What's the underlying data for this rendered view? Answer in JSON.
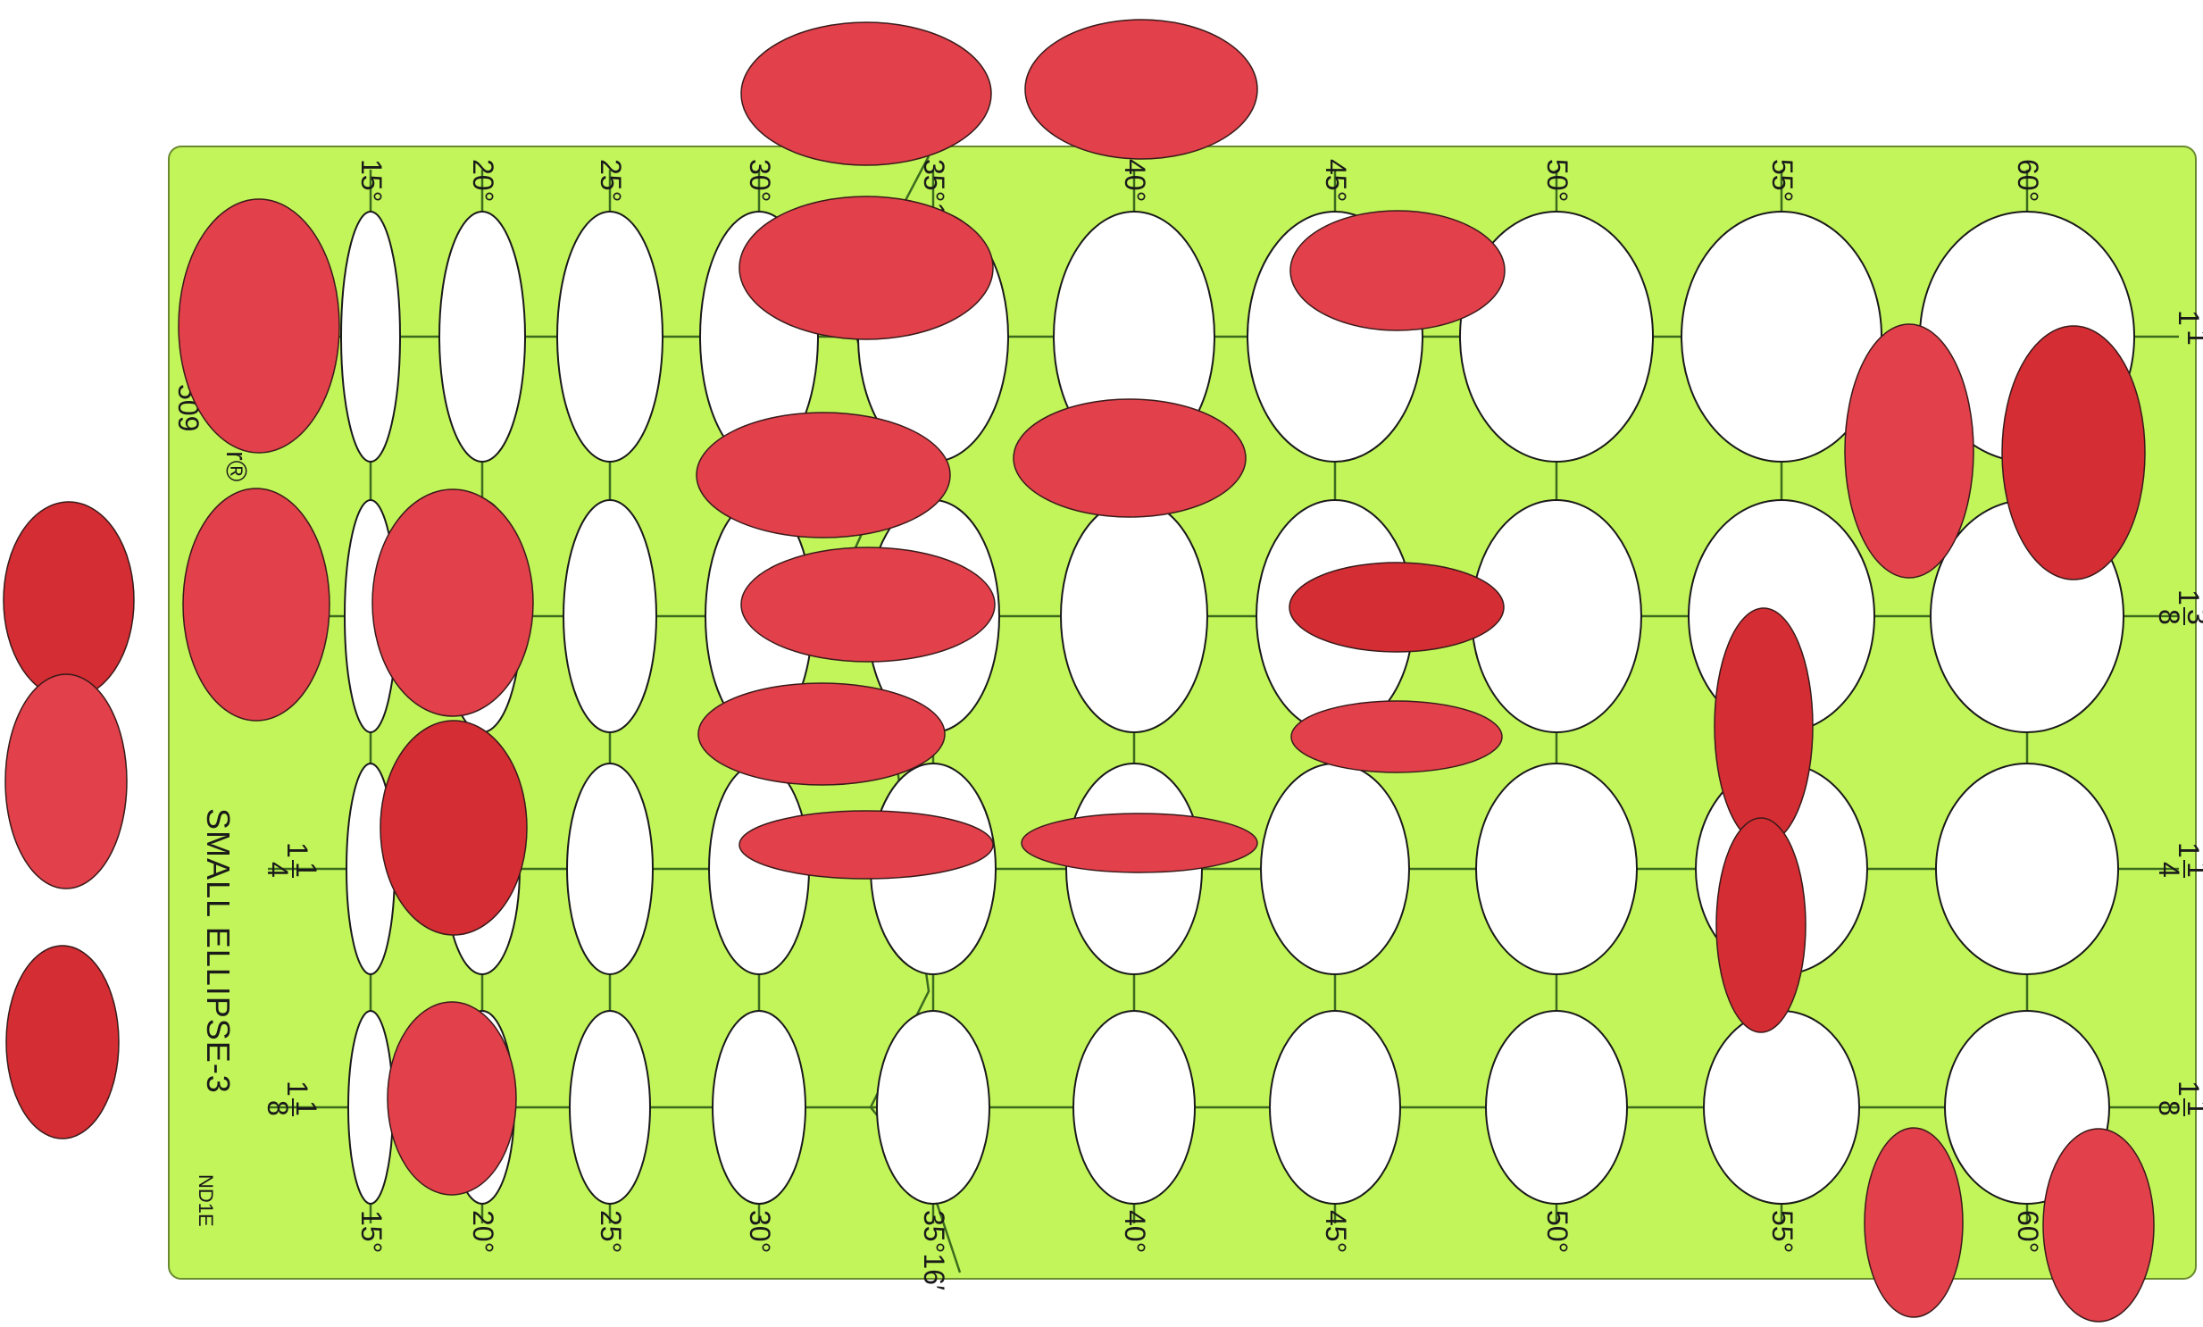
{
  "template": {
    "title": "SMALL ELLIPSE-3",
    "code": "ND1E",
    "partial_mark": "509",
    "partial_mark2": "r®",
    "color": "#c2f559",
    "stroke": "#3c6b1e",
    "angles_top": [
      "15°",
      "20°",
      "25°",
      "30°",
      "35°16′",
      "40°",
      "45°",
      "50°",
      "55°",
      "60°"
    ],
    "angles_bottom": [
      "15°",
      "20°",
      "25°",
      "30°",
      "35°16′",
      "40°",
      "45°",
      "50°",
      "55°",
      "60°"
    ],
    "sizes_right": [
      {
        "whole": "1",
        "num": "1",
        "den": ""
      },
      {
        "whole": "1",
        "num": "3",
        "den": "8"
      },
      {
        "whole": "1",
        "num": "1",
        "den": "4"
      },
      {
        "whole": "1",
        "num": "1",
        "den": "8"
      }
    ],
    "sizes_left": [
      {
        "whole": "1",
        "num": "1",
        "den": "4"
      },
      {
        "whole": "1",
        "num": "1",
        "den": "8"
      }
    ]
  },
  "overlay": {
    "color_light": "#e2404a",
    "color_dark": "#d42d33",
    "count": 31
  }
}
